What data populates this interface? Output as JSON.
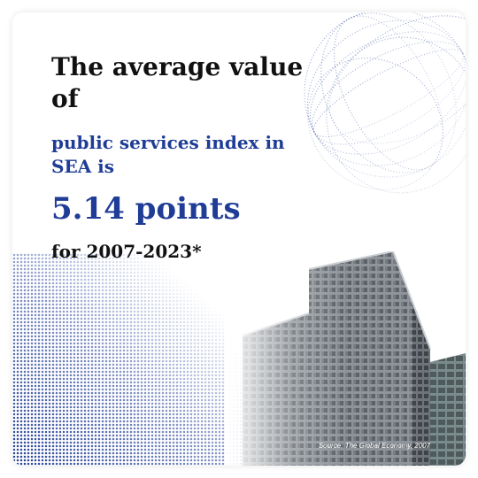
{
  "headline": "The average value of",
  "subhead": "public services index in SEA is",
  "value": "5.14 points",
  "period": "for 2007-2023*",
  "source": "Source: The Global Economy, 2007",
  "colors": {
    "accent": "#1f3c96",
    "text": "#111111",
    "background": "#ffffff"
  }
}
